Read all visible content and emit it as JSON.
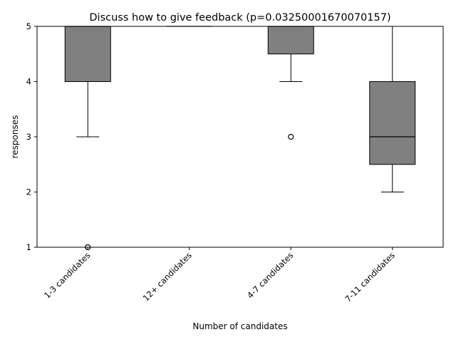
{
  "chart_data": {
    "type": "boxplot",
    "title": "Discuss how to give feedback (p=0.03250001670070157)",
    "xlabel": "Number of candidates",
    "ylabel": "responses",
    "ylim": [
      1,
      5
    ],
    "yticks": [
      "1",
      "2",
      "3",
      "4",
      "5"
    ],
    "grid": false,
    "legend": "none",
    "box_color": "#808080",
    "categories": [
      "1-3 candidates",
      "12+ candidates",
      "4-7 candidates",
      "7-11 candidates"
    ],
    "boxes": [
      {
        "whisker_low": 3,
        "q1": 4,
        "median": 5,
        "q3": 5,
        "whisker_high": 5,
        "outliers": [
          1
        ]
      },
      {
        "whisker_low": 5,
        "q1": 5,
        "median": 5,
        "q3": 5,
        "whisker_high": 5,
        "outliers": []
      },
      {
        "whisker_low": 4,
        "q1": 4.5,
        "median": 5,
        "q3": 5,
        "whisker_high": 5,
        "outliers": [
          3
        ]
      },
      {
        "whisker_low": 2,
        "q1": 2.5,
        "median": 3,
        "q3": 4,
        "whisker_high": 5,
        "outliers": []
      }
    ]
  }
}
